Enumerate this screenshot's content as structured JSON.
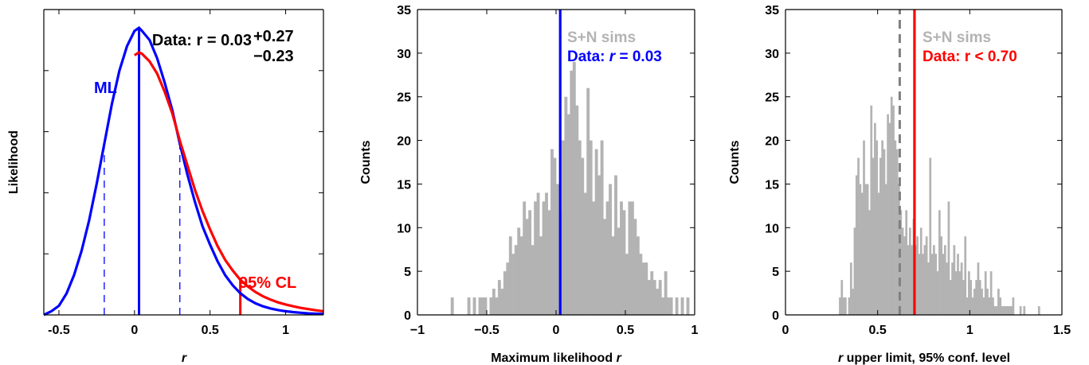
{
  "chart_data": [
    {
      "type": "line",
      "xlabel": "r",
      "ylabel": "Likelihood",
      "xlim": [
        -0.6,
        1.25
      ],
      "ylim": [
        0,
        1.0
      ],
      "xticks": [
        "-0.5",
        "0",
        "0.5",
        "1"
      ],
      "xtick_values": [
        -0.5,
        0,
        0.5,
        1
      ],
      "ytick_values_unlabeled": [
        0.2,
        0.4,
        0.6,
        0.8
      ],
      "series": [
        {
          "color": "#0000ff",
          "x": [
            -0.6,
            -0.55,
            -0.5,
            -0.45,
            -0.4,
            -0.35,
            -0.3,
            -0.25,
            -0.2,
            -0.15,
            -0.1,
            -0.05,
            0.0,
            0.03,
            0.05,
            0.1,
            0.15,
            0.2,
            0.25,
            0.3,
            0.35,
            0.4,
            0.45,
            0.5,
            0.55,
            0.6,
            0.65,
            0.7,
            0.75,
            0.8,
            0.85,
            0.9,
            0.95,
            1.0,
            1.05,
            1.1,
            1.15,
            1.2,
            1.25
          ],
          "y": [
            0.0,
            0.012,
            0.03,
            0.07,
            0.13,
            0.21,
            0.31,
            0.43,
            0.56,
            0.69,
            0.8,
            0.88,
            0.93,
            0.94,
            0.93,
            0.9,
            0.84,
            0.76,
            0.67,
            0.56,
            0.46,
            0.37,
            0.29,
            0.23,
            0.175,
            0.13,
            0.097,
            0.071,
            0.052,
            0.038,
            0.028,
            0.021,
            0.016,
            0.012,
            0.009,
            0.007,
            0.005,
            0.004,
            0.003
          ]
        },
        {
          "color": "#ff0000",
          "x": [
            0.0,
            0.03,
            0.05,
            0.1,
            0.15,
            0.2,
            0.25,
            0.3,
            0.35,
            0.4,
            0.45,
            0.5,
            0.55,
            0.6,
            0.65,
            0.7,
            0.75,
            0.8,
            0.85,
            0.9,
            0.95,
            1.0,
            1.05,
            1.1,
            1.15,
            1.2,
            1.25
          ],
          "y": [
            0.85,
            0.86,
            0.855,
            0.83,
            0.79,
            0.73,
            0.66,
            0.57,
            0.49,
            0.41,
            0.34,
            0.28,
            0.225,
            0.18,
            0.145,
            0.115,
            0.093,
            0.075,
            0.061,
            0.05,
            0.041,
            0.034,
            0.028,
            0.023,
            0.019,
            0.015,
            0.012
          ]
        }
      ],
      "vlines": [
        {
          "x": 0.03,
          "y_top": 0.94,
          "color": "#0000ff",
          "style": "solid"
        },
        {
          "x": -0.2,
          "y_top": 0.56,
          "color": "#0000ff",
          "style": "dashed"
        },
        {
          "x": 0.3,
          "y_top": 0.56,
          "color": "#0000ff",
          "style": "dashed"
        },
        {
          "x": 0.7,
          "y_top": 0.115,
          "color": "#ff0000",
          "style": "solid"
        }
      ],
      "annotations": {
        "data_label": "Data: r = 0.03",
        "upper_err": "+0.27",
        "lower_err": "−0.23",
        "ml_label": "ML",
        "cl_label": "95% CL"
      }
    },
    {
      "type": "bar",
      "xlabel_main": "Maximum likelihood",
      "xlabel_var": "r",
      "ylabel": "Counts",
      "xlim": [
        -1,
        1
      ],
      "ylim": [
        0,
        35
      ],
      "xticks": [
        "−1",
        "−0.5",
        "0",
        "0.5",
        "1"
      ],
      "xtick_values": [
        -1,
        -0.5,
        0,
        0.5,
        1
      ],
      "yticks": [
        "0",
        "5",
        "10",
        "15",
        "20",
        "25",
        "30",
        "35"
      ],
      "bin_start": -0.8,
      "bin_width": 0.02,
      "color": "#b3b3b3",
      "values": [
        0,
        0,
        2,
        0,
        0,
        0,
        0,
        0,
        2,
        0,
        2,
        0,
        2,
        2,
        2,
        0,
        2,
        3,
        2,
        4,
        3,
        5,
        6,
        9,
        7,
        8,
        10,
        9,
        13,
        11,
        12,
        8,
        13,
        14,
        9,
        13,
        14,
        12,
        19,
        18,
        15,
        12,
        20,
        25,
        23,
        28,
        29,
        24,
        20,
        18,
        14,
        26,
        20,
        13,
        19,
        16,
        20,
        11,
        13,
        15,
        9,
        16,
        10,
        13,
        12,
        7,
        13,
        13,
        11,
        9,
        7,
        6,
        6,
        4,
        5,
        4,
        3,
        4,
        2,
        5,
        2,
        2,
        0,
        2,
        0,
        2,
        0,
        2,
        0,
        0,
        0
      ],
      "vline": {
        "x": 0.03,
        "color": "#0000ff"
      },
      "legend": {
        "sims": "S+N sims",
        "data_prefix": "Data:",
        "data_var": "r",
        "data_suffix": "= 0.03"
      }
    },
    {
      "type": "bar",
      "xlabel_var": "r",
      "xlabel_main": "upper limit, 95% conf. level",
      "ylabel": "Counts",
      "xlim": [
        0,
        1.5
      ],
      "ylim": [
        0,
        35
      ],
      "xticks": [
        "0",
        "0.5",
        "1",
        "1.5"
      ],
      "xtick_values": [
        0,
        0.5,
        1,
        1.5
      ],
      "yticks": [
        "0",
        "5",
        "10",
        "15",
        "20",
        "25",
        "30",
        "35"
      ],
      "bin_start": 0.27,
      "bin_width": 0.01,
      "color": "#b3b3b3",
      "values": [
        0,
        0,
        2,
        4,
        2,
        2,
        0,
        2,
        6,
        3,
        10,
        16,
        18,
        15,
        14,
        20,
        15,
        15,
        12,
        24,
        18,
        22,
        20,
        14,
        18,
        20,
        19,
        15,
        23,
        22,
        25,
        24,
        20,
        19,
        15,
        12,
        10,
        9,
        12,
        8,
        10,
        8,
        11,
        8,
        9,
        7,
        10,
        7,
        8,
        9,
        6,
        18,
        7,
        8,
        7,
        5,
        12,
        9,
        7,
        8,
        6,
        13,
        4,
        6,
        8,
        5,
        7,
        5,
        6,
        4,
        9,
        2,
        5,
        4,
        2,
        3,
        4,
        6,
        4,
        3,
        2,
        5,
        3,
        2,
        5,
        2,
        1,
        1,
        3,
        2,
        1,
        1,
        1,
        1,
        1,
        1,
        2,
        0,
        0,
        0,
        1,
        0,
        1,
        0,
        0,
        0,
        0,
        0,
        0,
        0,
        1,
        0,
        0,
        0,
        0,
        0,
        0,
        0,
        0,
        0
      ],
      "vline_data": {
        "x": 0.7,
        "color": "#ff0000"
      },
      "vline_median": {
        "x": 0.62,
        "color": "#808080"
      },
      "legend": {
        "sims": "S+N sims",
        "data": "Data: r < 0.70"
      }
    }
  ]
}
